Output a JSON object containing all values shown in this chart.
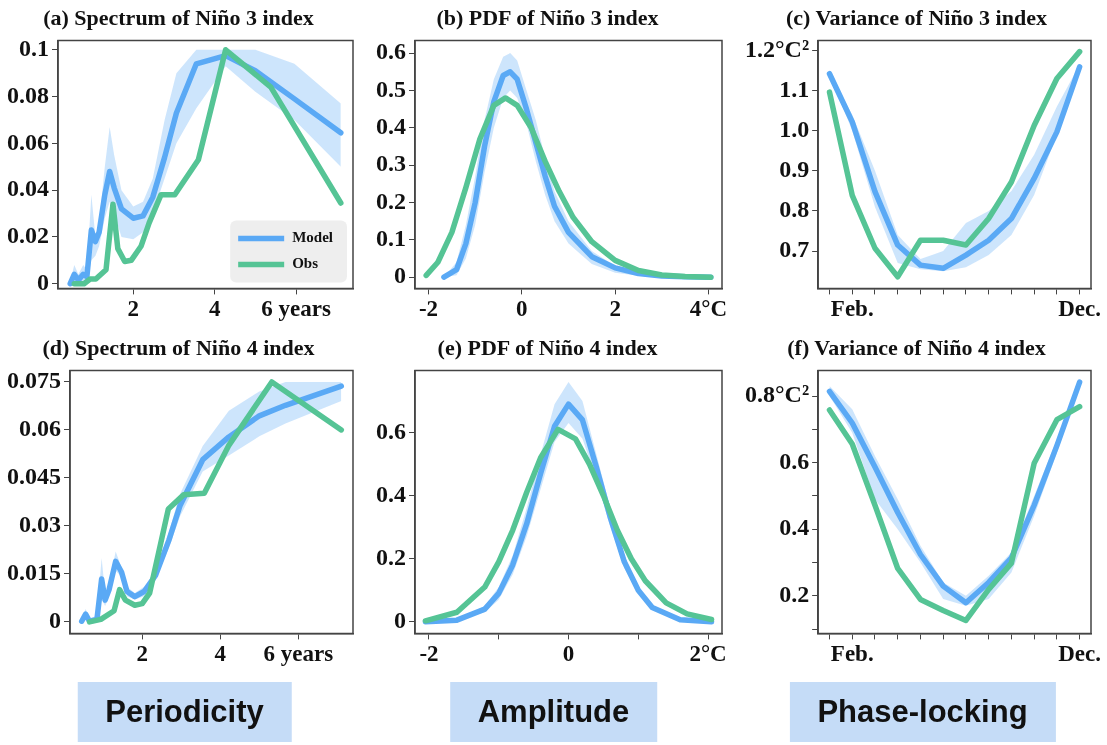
{
  "chart_data": [
    {
      "type": "line",
      "title": "(a) Spectrum of Niño 3 index",
      "xlim": [
        0.15,
        7.4
      ],
      "xticks": [
        2,
        4,
        {
          "value": 6,
          "label": "6 years"
        }
      ],
      "ylim": [
        -0.002,
        0.104
      ],
      "yticks": [
        0,
        0.02,
        0.04,
        0.06,
        0.08,
        0.1
      ],
      "legend": "bottom right",
      "series": [
        {
          "name": "Model",
          "color": "#5aa9f5",
          "x": [
            0.45,
            0.55,
            0.65,
            0.77,
            0.86,
            0.97,
            1.07,
            1.16,
            1.3,
            1.42,
            1.53,
            1.71,
            2.0,
            2.24,
            2.48,
            2.77,
            3.06,
            3.55,
            4.27,
            5.0,
            5.96,
            7.1
          ],
          "values": [
            0,
            0.004,
            0.0015,
            0.004,
            0.003,
            0.023,
            0.018,
            0.022,
            0.038,
            0.048,
            0.041,
            0.032,
            0.028,
            0.029,
            0.037,
            0.054,
            0.073,
            0.094,
            0.0975,
            0.091,
            0.079,
            0.0645
          ],
          "upper": [
            0.001,
            0.008,
            0.004,
            0.008,
            0.006,
            0.038,
            0.02,
            0.026,
            0.05,
            0.067,
            0.055,
            0.04,
            0.033,
            0.035,
            0.045,
            0.07,
            0.09,
            0.1,
            0.1,
            0.1,
            0.094,
            0.077
          ],
          "lower": [
            0,
            0,
            0,
            0.001,
            0.001,
            0.01,
            0.012,
            0.016,
            0.028,
            0.035,
            0.03,
            0.02,
            0.019,
            0.022,
            0.03,
            0.045,
            0.06,
            0.075,
            0.093,
            0.082,
            0.07,
            0.05
          ]
        },
        {
          "name": "Obs",
          "color": "#55c495",
          "x": [
            0.55,
            0.79,
            0.94,
            1.08,
            1.33,
            1.5,
            1.62,
            1.79,
            1.95,
            2.19,
            2.39,
            2.68,
            3.02,
            3.6,
            4.27,
            5.38,
            7.1
          ],
          "values": [
            0,
            0,
            0.002,
            0.002,
            0.006,
            0.034,
            0.015,
            0.0095,
            0.01,
            0.016,
            0.026,
            0.038,
            0.038,
            0.053,
            0.1,
            0.084,
            0.0345
          ]
        }
      ]
    },
    {
      "type": "line",
      "title": "(b) PDF of Niño 3 index",
      "xlim": [
        -2.29,
        4.29
      ],
      "xticks": [
        -2,
        0,
        2,
        {
          "value": 4,
          "label": "4°C"
        }
      ],
      "ylim": [
        -0.03,
        0.634
      ],
      "yticks": [
        0,
        0.1,
        0.2,
        0.3,
        0.4,
        0.5,
        0.6
      ],
      "series": [
        {
          "color": "#5aa9f5",
          "x": [
            -1.67,
            -1.4,
            -1.2,
            -1.0,
            -0.8,
            -0.6,
            -0.4,
            -0.25,
            -0.1,
            0.1,
            0.3,
            0.5,
            0.7,
            1.0,
            1.5,
            2.0,
            2.5,
            3.0,
            3.5,
            4.05
          ],
          "values": [
            0,
            0.02,
            0.09,
            0.2,
            0.35,
            0.47,
            0.54,
            0.55,
            0.53,
            0.45,
            0.36,
            0.27,
            0.19,
            0.12,
            0.055,
            0.025,
            0.01,
            0.003,
            0.001,
            0
          ],
          "upper": [
            0,
            0.04,
            0.14,
            0.27,
            0.42,
            0.53,
            0.59,
            0.6,
            0.58,
            0.5,
            0.42,
            0.32,
            0.23,
            0.15,
            0.07,
            0.03,
            0.012,
            0.004,
            0.001,
            0
          ],
          "lower": [
            0,
            0.005,
            0.05,
            0.14,
            0.28,
            0.4,
            0.48,
            0.5,
            0.48,
            0.41,
            0.31,
            0.22,
            0.15,
            0.09,
            0.035,
            0.012,
            0.004,
            0.001,
            0,
            0
          ]
        },
        {
          "color": "#55c495",
          "x": [
            -2.05,
            -1.8,
            -1.5,
            -1.2,
            -0.9,
            -0.6,
            -0.35,
            -0.1,
            0.2,
            0.5,
            0.8,
            1.1,
            1.5,
            2.0,
            2.5,
            3.0,
            3.5,
            4.05
          ],
          "values": [
            0.005,
            0.04,
            0.12,
            0.24,
            0.37,
            0.46,
            0.48,
            0.46,
            0.4,
            0.31,
            0.23,
            0.16,
            0.095,
            0.045,
            0.018,
            0.006,
            0.002,
            0
          ]
        }
      ]
    },
    {
      "type": "line",
      "title": "(c) Variance of Niño 3 index",
      "categories": [
        null,
        "Feb.",
        null,
        null,
        null,
        null,
        null,
        null,
        null,
        null,
        null,
        "Dec."
      ],
      "ylim": [
        0.607,
        1.225
      ],
      "yticks": [
        0.7,
        0.8,
        0.9,
        {
          "value": 1,
          "label": "1.0"
        },
        1.1,
        {
          "value": 1.2,
          "label": "1.2°C²"
        }
      ],
      "series": [
        {
          "color": "#5aa9f5",
          "values": [
            1.142,
            1.022,
            0.848,
            0.715,
            0.665,
            0.657,
            0.69,
            0.727,
            0.781,
            0.881,
            0.997,
            1.159
          ],
          "upper": [
            1.145,
            1.04,
            0.9,
            0.74,
            0.68,
            0.7,
            0.77,
            0.8,
            0.85,
            0.94,
            1.06,
            1.165
          ],
          "lower": [
            1.14,
            1.0,
            0.81,
            0.67,
            0.655,
            0.65,
            0.66,
            0.69,
            0.74,
            0.84,
            0.99,
            1.15
          ]
        },
        {
          "color": "#55c495",
          "values": [
            1.096,
            0.839,
            0.707,
            0.636,
            0.727,
            0.727,
            0.715,
            0.781,
            0.872,
            1.013,
            1.13,
            1.197
          ]
        }
      ]
    },
    {
      "type": "line",
      "title": "(d) Spectrum of Niño 4 index",
      "xlim": [
        0.15,
        7.4
      ],
      "xticks": [
        2,
        4,
        {
          "value": 6,
          "label": "6 years"
        }
      ],
      "ylim": [
        -0.0036,
        0.0786
      ],
      "yticks": [
        0,
        0.015,
        0.03,
        0.045,
        0.06,
        0.075
      ],
      "annotations": [
        "Periodicity"
      ],
      "series": [
        {
          "color": "#5aa9f5",
          "x": [
            0.45,
            0.55,
            0.65,
            0.84,
            0.96,
            1.05,
            1.15,
            1.32,
            1.47,
            1.61,
            1.81,
            2.05,
            2.34,
            2.68,
            2.97,
            3.55,
            4.22,
            5.0,
            5.67,
            7.1
          ],
          "values": [
            0.0002,
            0.0024,
            0.0002,
            0.0008,
            0.0134,
            0.0068,
            0.01,
            0.0189,
            0.0156,
            0.0095,
            0.0079,
            0.0095,
            0.0145,
            0.0254,
            0.0364,
            0.0507,
            0.0578,
            0.0644,
            0.0677,
            0.0737
          ],
          "upper": [
            0.001,
            0.004,
            0.001,
            0.002,
            0.02,
            0.009,
            0.012,
            0.022,
            0.017,
            0.011,
            0.009,
            0.011,
            0.016,
            0.028,
            0.04,
            0.055,
            0.066,
            0.072,
            0.075,
            0.075
          ],
          "lower": [
            0,
            0.001,
            0,
            0,
            0.007,
            0.005,
            0.008,
            0.016,
            0.014,
            0.008,
            0.007,
            0.008,
            0.013,
            0.023,
            0.033,
            0.047,
            0.052,
            0.058,
            0.062,
            0.069
          ]
        },
        {
          "color": "#55c495",
          "x": [
            0.65,
            0.94,
            1.28,
            1.42,
            1.57,
            1.81,
            2.0,
            2.19,
            2.67,
            3.06,
            3.59,
            4.21,
            5.32,
            7.1
          ],
          "values": [
            0,
            0.0008,
            0.0035,
            0.0101,
            0.0068,
            0.0052,
            0.0057,
            0.009,
            0.0353,
            0.0397,
            0.0402,
            0.055,
            0.075,
            0.06
          ]
        }
      ]
    },
    {
      "type": "line",
      "title": "(e) PDF of Niño 4 index",
      "xlim": [
        -2.2,
        2.2
      ],
      "xticks": [
        -2,
        {
          "value": -1,
          "label": null
        },
        0,
        {
          "value": 1,
          "label": null
        },
        {
          "value": 2,
          "label": "2°C"
        }
      ],
      "ylim": [
        -0.037,
        0.797
      ],
      "yticks": [
        0,
        0.2,
        0.4,
        0.6
      ],
      "annotations": [
        "Amplitude"
      ],
      "series": [
        {
          "color": "#5aa9f5",
          "x": [
            -2.05,
            -1.6,
            -1.2,
            -1.0,
            -0.8,
            -0.6,
            -0.4,
            -0.2,
            0,
            0.2,
            0.4,
            0.6,
            0.8,
            1.0,
            1.2,
            1.6,
            2.05
          ],
          "values": [
            0,
            0.005,
            0.04,
            0.09,
            0.18,
            0.31,
            0.47,
            0.62,
            0.69,
            0.64,
            0.49,
            0.33,
            0.19,
            0.1,
            0.045,
            0.006,
            0
          ],
          "upper": [
            0.001,
            0.008,
            0.05,
            0.11,
            0.21,
            0.36,
            0.53,
            0.69,
            0.76,
            0.7,
            0.53,
            0.36,
            0.21,
            0.11,
            0.05,
            0.008,
            0.001
          ],
          "lower": [
            0,
            0.003,
            0.03,
            0.07,
            0.15,
            0.27,
            0.42,
            0.57,
            0.63,
            0.58,
            0.45,
            0.3,
            0.17,
            0.09,
            0.04,
            0.004,
            0
          ]
        },
        {
          "color": "#55c495",
          "x": [
            -2.05,
            -1.6,
            -1.2,
            -1.0,
            -0.8,
            -0.6,
            -0.4,
            -0.15,
            0.1,
            0.3,
            0.5,
            0.7,
            0.9,
            1.1,
            1.4,
            1.7,
            2.05
          ],
          "values": [
            0.003,
            0.03,
            0.11,
            0.19,
            0.29,
            0.41,
            0.52,
            0.61,
            0.58,
            0.5,
            0.4,
            0.29,
            0.2,
            0.13,
            0.06,
            0.025,
            0.007
          ]
        }
      ]
    },
    {
      "type": "line",
      "title": "(f) Variance of Niño 4 index",
      "categories": [
        null,
        "Feb.",
        null,
        null,
        null,
        null,
        null,
        null,
        null,
        null,
        null,
        "Dec."
      ],
      "ylim": [
        0.087,
        0.877
      ],
      "yticks": [
        {
          "value": 0.1,
          "label": null
        },
        0.2,
        {
          "value": 0.3,
          "label": null
        },
        0.4,
        {
          "value": 0.5,
          "label": null
        },
        0.6,
        {
          "value": 0.7,
          "label": null
        },
        {
          "value": 0.8,
          "label": "0.8°C²"
        }
      ],
      "annotations": [
        "Phase-locking"
      ],
      "series": [
        {
          "color": "#5aa9f5",
          "values": [
            0.814,
            0.719,
            0.587,
            0.45,
            0.324,
            0.229,
            0.179,
            0.24,
            0.314,
            0.472,
            0.651,
            0.842
          ],
          "upper": [
            0.83,
            0.76,
            0.62,
            0.49,
            0.35,
            0.24,
            0.2,
            0.26,
            0.33,
            0.5,
            0.67,
            0.85
          ],
          "lower": [
            0.8,
            0.69,
            0.49,
            0.4,
            0.3,
            0.19,
            0.17,
            0.19,
            0.27,
            0.44,
            0.63,
            0.83
          ]
        },
        {
          "color": "#55c495",
          "values": [
            0.758,
            0.656,
            0.472,
            0.282,
            0.189,
            0.156,
            0.126,
            0.219,
            0.298,
            0.598,
            0.729,
            0.768
          ]
        }
      ]
    }
  ]
}
